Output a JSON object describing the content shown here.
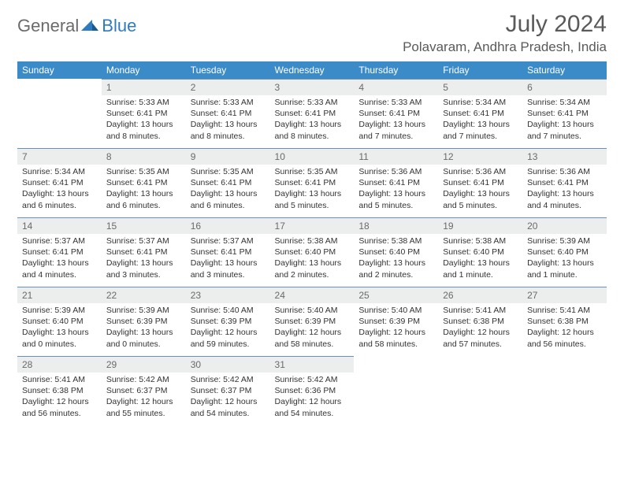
{
  "brand": {
    "part1": "General",
    "part2": "Blue"
  },
  "title": "July 2024",
  "location": "Polavaram, Andhra Pradesh, India",
  "colors": {
    "header_bg": "#3b8bc9",
    "header_text": "#ffffff",
    "daynum_bg": "#eceded",
    "daynum_text": "#6a6a6a",
    "rule": "#6a91b4",
    "body_text": "#333333",
    "brand_gray": "#6b6b6b",
    "brand_blue": "#2f7bbf"
  },
  "weekdays": [
    "Sunday",
    "Monday",
    "Tuesday",
    "Wednesday",
    "Thursday",
    "Friday",
    "Saturday"
  ],
  "layout": {
    "first_weekday_index": 1,
    "days_in_month": 31
  },
  "days": {
    "1": {
      "sunrise": "5:33 AM",
      "sunset": "6:41 PM",
      "daylight": "13 hours and 8 minutes."
    },
    "2": {
      "sunrise": "5:33 AM",
      "sunset": "6:41 PM",
      "daylight": "13 hours and 8 minutes."
    },
    "3": {
      "sunrise": "5:33 AM",
      "sunset": "6:41 PM",
      "daylight": "13 hours and 8 minutes."
    },
    "4": {
      "sunrise": "5:33 AM",
      "sunset": "6:41 PM",
      "daylight": "13 hours and 7 minutes."
    },
    "5": {
      "sunrise": "5:34 AM",
      "sunset": "6:41 PM",
      "daylight": "13 hours and 7 minutes."
    },
    "6": {
      "sunrise": "5:34 AM",
      "sunset": "6:41 PM",
      "daylight": "13 hours and 7 minutes."
    },
    "7": {
      "sunrise": "5:34 AM",
      "sunset": "6:41 PM",
      "daylight": "13 hours and 6 minutes."
    },
    "8": {
      "sunrise": "5:35 AM",
      "sunset": "6:41 PM",
      "daylight": "13 hours and 6 minutes."
    },
    "9": {
      "sunrise": "5:35 AM",
      "sunset": "6:41 PM",
      "daylight": "13 hours and 6 minutes."
    },
    "10": {
      "sunrise": "5:35 AM",
      "sunset": "6:41 PM",
      "daylight": "13 hours and 5 minutes."
    },
    "11": {
      "sunrise": "5:36 AM",
      "sunset": "6:41 PM",
      "daylight": "13 hours and 5 minutes."
    },
    "12": {
      "sunrise": "5:36 AM",
      "sunset": "6:41 PM",
      "daylight": "13 hours and 5 minutes."
    },
    "13": {
      "sunrise": "5:36 AM",
      "sunset": "6:41 PM",
      "daylight": "13 hours and 4 minutes."
    },
    "14": {
      "sunrise": "5:37 AM",
      "sunset": "6:41 PM",
      "daylight": "13 hours and 4 minutes."
    },
    "15": {
      "sunrise": "5:37 AM",
      "sunset": "6:41 PM",
      "daylight": "13 hours and 3 minutes."
    },
    "16": {
      "sunrise": "5:37 AM",
      "sunset": "6:41 PM",
      "daylight": "13 hours and 3 minutes."
    },
    "17": {
      "sunrise": "5:38 AM",
      "sunset": "6:40 PM",
      "daylight": "13 hours and 2 minutes."
    },
    "18": {
      "sunrise": "5:38 AM",
      "sunset": "6:40 PM",
      "daylight": "13 hours and 2 minutes."
    },
    "19": {
      "sunrise": "5:38 AM",
      "sunset": "6:40 PM",
      "daylight": "13 hours and 1 minute."
    },
    "20": {
      "sunrise": "5:39 AM",
      "sunset": "6:40 PM",
      "daylight": "13 hours and 1 minute."
    },
    "21": {
      "sunrise": "5:39 AM",
      "sunset": "6:40 PM",
      "daylight": "13 hours and 0 minutes."
    },
    "22": {
      "sunrise": "5:39 AM",
      "sunset": "6:39 PM",
      "daylight": "13 hours and 0 minutes."
    },
    "23": {
      "sunrise": "5:40 AM",
      "sunset": "6:39 PM",
      "daylight": "12 hours and 59 minutes."
    },
    "24": {
      "sunrise": "5:40 AM",
      "sunset": "6:39 PM",
      "daylight": "12 hours and 58 minutes."
    },
    "25": {
      "sunrise": "5:40 AM",
      "sunset": "6:39 PM",
      "daylight": "12 hours and 58 minutes."
    },
    "26": {
      "sunrise": "5:41 AM",
      "sunset": "6:38 PM",
      "daylight": "12 hours and 57 minutes."
    },
    "27": {
      "sunrise": "5:41 AM",
      "sunset": "6:38 PM",
      "daylight": "12 hours and 56 minutes."
    },
    "28": {
      "sunrise": "5:41 AM",
      "sunset": "6:38 PM",
      "daylight": "12 hours and 56 minutes."
    },
    "29": {
      "sunrise": "5:42 AM",
      "sunset": "6:37 PM",
      "daylight": "12 hours and 55 minutes."
    },
    "30": {
      "sunrise": "5:42 AM",
      "sunset": "6:37 PM",
      "daylight": "12 hours and 54 minutes."
    },
    "31": {
      "sunrise": "5:42 AM",
      "sunset": "6:36 PM",
      "daylight": "12 hours and 54 minutes."
    }
  },
  "labels": {
    "sunrise": "Sunrise:",
    "sunset": "Sunset:",
    "daylight": "Daylight:"
  }
}
